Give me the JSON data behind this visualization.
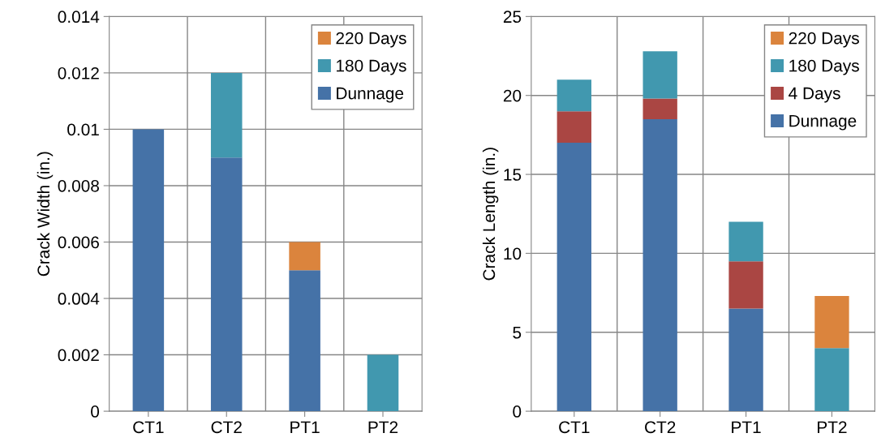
{
  "chart_data": [
    {
      "type": "bar",
      "stacked": true,
      "ylabel": "Crack Width (in.)",
      "categories": [
        "CT1",
        "CT2",
        "PT1",
        "PT2"
      ],
      "series": [
        {
          "name": "Dunnage",
          "color": "#4572a7",
          "values": [
            0.01,
            0.009,
            0.005,
            null
          ]
        },
        {
          "name": "180 Days",
          "color": "#4198af",
          "values": [
            null,
            0.003,
            null,
            0.002
          ]
        },
        {
          "name": "220 Days",
          "color": "#db843d",
          "values": [
            null,
            null,
            0.001,
            null
          ]
        }
      ],
      "ylim": [
        0,
        0.014
      ],
      "yticks": [
        0,
        0.002,
        0.004,
        0.006,
        0.008,
        0.01,
        0.012,
        0.014
      ],
      "grid": true,
      "legend": "top right"
    },
    {
      "type": "bar",
      "stacked": true,
      "ylabel": "Crack Length (in.)",
      "categories": [
        "CT1",
        "CT2",
        "PT1",
        "PT2"
      ],
      "series": [
        {
          "name": "Dunnage",
          "color": "#4572a7",
          "values": [
            17,
            18.5,
            6.5,
            null
          ]
        },
        {
          "name": "4 Days",
          "color": "#aa4643",
          "values": [
            2,
            1.3,
            3,
            null
          ]
        },
        {
          "name": "180 Days",
          "color": "#4198af",
          "values": [
            2,
            3,
            2.5,
            4
          ]
        },
        {
          "name": "220 Days",
          "color": "#db843d",
          "values": [
            null,
            null,
            null,
            3.3
          ]
        }
      ],
      "ylim": [
        0,
        25
      ],
      "yticks": [
        0,
        5,
        10,
        15,
        20,
        25
      ],
      "grid": true,
      "legend": "top right"
    }
  ]
}
